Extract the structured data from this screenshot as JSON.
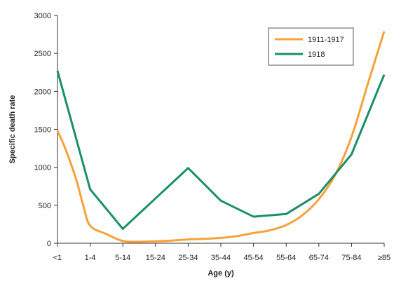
{
  "chart_data": {
    "type": "line",
    "title": "",
    "xlabel": "Age (y)",
    "ylabel": "Specific death rate",
    "categories": [
      "<1",
      "1-4",
      "5-14",
      "15-24",
      "25-34",
      "35-44",
      "45-54",
      "55-64",
      "65-74",
      "75-84",
      "≥85"
    ],
    "ylim": [
      0,
      3000
    ],
    "yticks": [
      0,
      500,
      1000,
      1500,
      2000,
      2500,
      3000
    ],
    "ytick_labels": [
      "0",
      "500",
      "1000",
      "1500",
      "2000",
      "2500",
      "3000"
    ],
    "grid": false,
    "legend_position": "top-right",
    "series": [
      {
        "name": "1911-1917",
        "color": "#f7a13a",
        "smooth": true,
        "x": [
          0,
          0.2,
          0.4,
          0.6,
          0.8,
          1,
          1.5,
          2,
          2.5,
          3,
          3.5,
          4,
          4.5,
          5,
          5.5,
          6,
          6.5,
          7,
          7.5,
          8,
          8.5,
          9,
          9.5,
          10
        ],
        "values": [
          1480,
          1290,
          1060,
          800,
          480,
          230,
          120,
          30,
          20,
          25,
          35,
          50,
          58,
          70,
          95,
          135,
          170,
          240,
          370,
          580,
          900,
          1400,
          2100,
          2790
        ]
      },
      {
        "name": "1918",
        "color": "#1a8f68",
        "smooth": false,
        "x": [
          0,
          1,
          2,
          3,
          4,
          5,
          6,
          7,
          8,
          9,
          10
        ],
        "values": [
          2270,
          710,
          190,
          590,
          990,
          560,
          350,
          385,
          650,
          1170,
          2220
        ]
      }
    ]
  }
}
